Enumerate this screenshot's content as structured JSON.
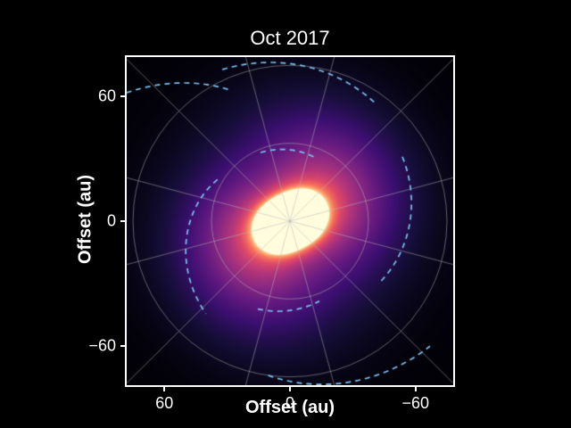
{
  "figure": {
    "background": "#000000",
    "text_color": "#ffffff",
    "frame_color": "#ffffff"
  },
  "chart_data": {
    "type": "heatmap",
    "title": "Oct 2017",
    "xlabel": "Offset (au)",
    "ylabel": "Offset (au)",
    "units": "au",
    "x_axis_inverted": true,
    "xlim": [
      78,
      -78
    ],
    "ylim": [
      -79,
      79
    ],
    "x_ticks": [
      {
        "value": 60,
        "label": "60"
      },
      {
        "value": 0,
        "label": "0"
      },
      {
        "value": -60,
        "label": "−60"
      }
    ],
    "y_ticks": [
      {
        "value": -60,
        "label": "−60"
      },
      {
        "value": 0,
        "label": "0"
      },
      {
        "value": 60,
        "label": "60"
      }
    ],
    "colormap": [
      [
        0.0,
        "#000004"
      ],
      [
        0.14,
        "#150e37"
      ],
      [
        0.28,
        "#3b0f70"
      ],
      [
        0.42,
        "#641a80"
      ],
      [
        0.55,
        "#8c2981"
      ],
      [
        0.68,
        "#b73779"
      ],
      [
        0.79,
        "#de4968"
      ],
      [
        0.88,
        "#f7705c"
      ],
      [
        0.94,
        "#fe9f6d"
      ],
      [
        0.98,
        "#fecf92"
      ],
      [
        1.0,
        "#fffdde"
      ]
    ],
    "intensity_model": {
      "core_amp": 1.15,
      "core_sigma": 13,
      "halo_amp": 0.7,
      "halo_sigma": 40,
      "halo_exp": 1.7,
      "disk_amp": 0.38,
      "disk_sigma": 55,
      "disk_exp": 2.5,
      "arm_base": 0.55,
      "arm_contrast": 0.45,
      "arm_phase": 23,
      "arm_wind": 0.4
    },
    "grid": {
      "color": "#b8b8b8",
      "opacity": 0.5,
      "line_width": 1,
      "circle_radii_au": [
        37.5,
        75
      ],
      "spoke_angles_deg": [
        15,
        45,
        75,
        105,
        135,
        165
      ],
      "spoke_extent_au": 130
    },
    "spiral_arcs": {
      "color": "#7cc4f0",
      "dash": [
        6,
        5
      ],
      "width": 1.7,
      "segments": [
        {
          "r0": 70,
          "r1": 80,
          "a0": 55,
          "a1": 115
        },
        {
          "r0": 70,
          "r1": 100,
          "a0": 115,
          "a1": 142
        },
        {
          "r0": 40,
          "r1": 60,
          "a0": 150,
          "a1": 228
        },
        {
          "r0": 33,
          "r1": 36,
          "a0": 70,
          "a1": 115
        },
        {
          "r0": 62,
          "r1": 52,
          "a0": 30,
          "a1": -35
        },
        {
          "r0": 45,
          "r1": 41,
          "a0": 250,
          "a1": 290
        },
        {
          "r0": 75,
          "r1": 90,
          "a0": 262,
          "a1": 318
        }
      ]
    }
  }
}
